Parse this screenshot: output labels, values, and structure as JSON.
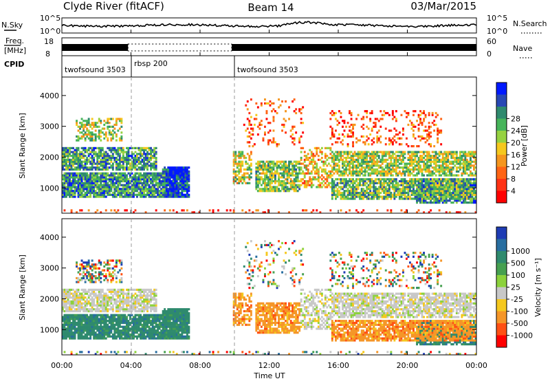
{
  "header": {
    "station": "Clyde River (fitACF)",
    "beam": "Beam 14",
    "date": "03/Mar/2015"
  },
  "strips": {
    "nsky_label": "N.Sky",
    "nsearch_label": "N.Search",
    "freq_label_1": "Freq.",
    "freq_label_2": "[MHz]",
    "nave_label": "Nave",
    "cpid_label": "CPID",
    "count_left_ticks": [
      "10^5",
      "10^0"
    ],
    "count_right_ticks": [
      "10^5",
      "10^0"
    ],
    "freq_ticks": [
      "18",
      "8"
    ],
    "nave_ticks": [
      "60",
      "0"
    ],
    "cpid_segments": [
      {
        "name": "twofsound 3503",
        "start": 0,
        "end": 3.83
      },
      {
        "name": "rbsp 200",
        "start": 3.83,
        "end": 9.83
      },
      {
        "name": "twofsound 3503",
        "start": 9.83,
        "end": 24
      }
    ]
  },
  "chart_data": [
    {
      "type": "heatmap",
      "quantity": "power",
      "ylabel": "Slant Range [km]",
      "ylim": [
        180,
        4600
      ],
      "yticks": [
        "1000",
        "2000",
        "3000",
        "4000"
      ],
      "xlim": [
        0,
        24
      ],
      "colorbar": {
        "label": "Power [dB]",
        "ticks": [
          "4",
          "8",
          "12",
          "16",
          "20",
          "24",
          "28"
        ],
        "colors": [
          "#0019ff",
          "#2848b4",
          "#2f8a6e",
          "#46b45a",
          "#96d241",
          "#f5c81e",
          "#f5961e",
          "#ff6414",
          "#ff3214",
          "#ff0000"
        ]
      }
    },
    {
      "type": "heatmap",
      "quantity": "velocity",
      "ylabel": "Slant Range [km]",
      "ylim": [
        180,
        4600
      ],
      "yticks": [
        "1000",
        "2000",
        "3000",
        "4000"
      ],
      "xlim": [
        0,
        24
      ],
      "colorbar": {
        "label": "Velocity [m s⁻¹]",
        "ticks": [
          "1000",
          "500",
          "100",
          "25",
          "-25",
          "-100",
          "-500",
          "-1000"
        ],
        "colors": [
          "#1e3cb4",
          "#286ea0",
          "#2f8a6e",
          "#46a050",
          "#8cd23c",
          "#c8c8c8",
          "#f5c81e",
          "#f59628",
          "#ff5014",
          "#ff0000"
        ]
      }
    }
  ],
  "xaxis": {
    "label": "Time UT",
    "ticks": [
      "00:00",
      "04:00",
      "08:00",
      "12:00",
      "16:00",
      "20:00",
      "00:00"
    ]
  },
  "colors": {
    "power_scale": "red-orange-yellow-green-blue",
    "velocity_scale": "blue-green-grey-orange-red"
  }
}
